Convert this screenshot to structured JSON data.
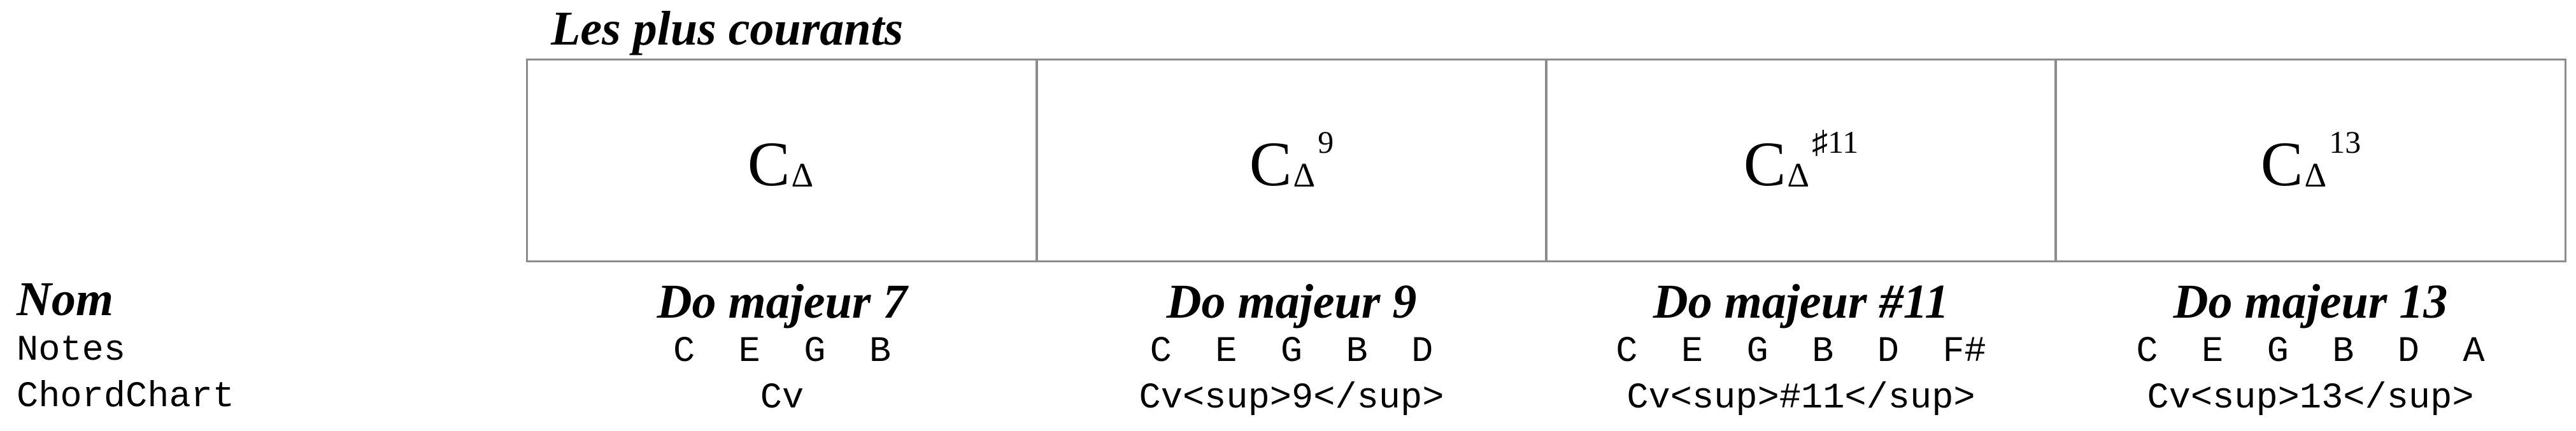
{
  "section": {
    "title": "Les plus courants"
  },
  "row_labels": {
    "name": "Nom",
    "notes": "Notes",
    "chordchart": "ChordChart"
  },
  "chords": [
    {
      "root": "C",
      "quality": "Δ",
      "extension": "",
      "name": "Do majeur 7",
      "notes": "C E G B",
      "chordchart": "Cv"
    },
    {
      "root": "C",
      "quality": "Δ",
      "extension": "9",
      "name": "Do majeur 9",
      "notes": "C E G B D",
      "chordchart": "Cv<sup>9</sup>"
    },
    {
      "root": "C",
      "quality": "Δ",
      "extension": "♯11",
      "name": "Do majeur #11",
      "notes": "C E G B D F#",
      "chordchart": "Cv<sup>#11</sup>"
    },
    {
      "root": "C",
      "quality": "Δ",
      "extension": "13",
      "name": "Do majeur 13",
      "notes": "C E G B D A",
      "chordchart": "Cv<sup>13</sup>"
    }
  ]
}
